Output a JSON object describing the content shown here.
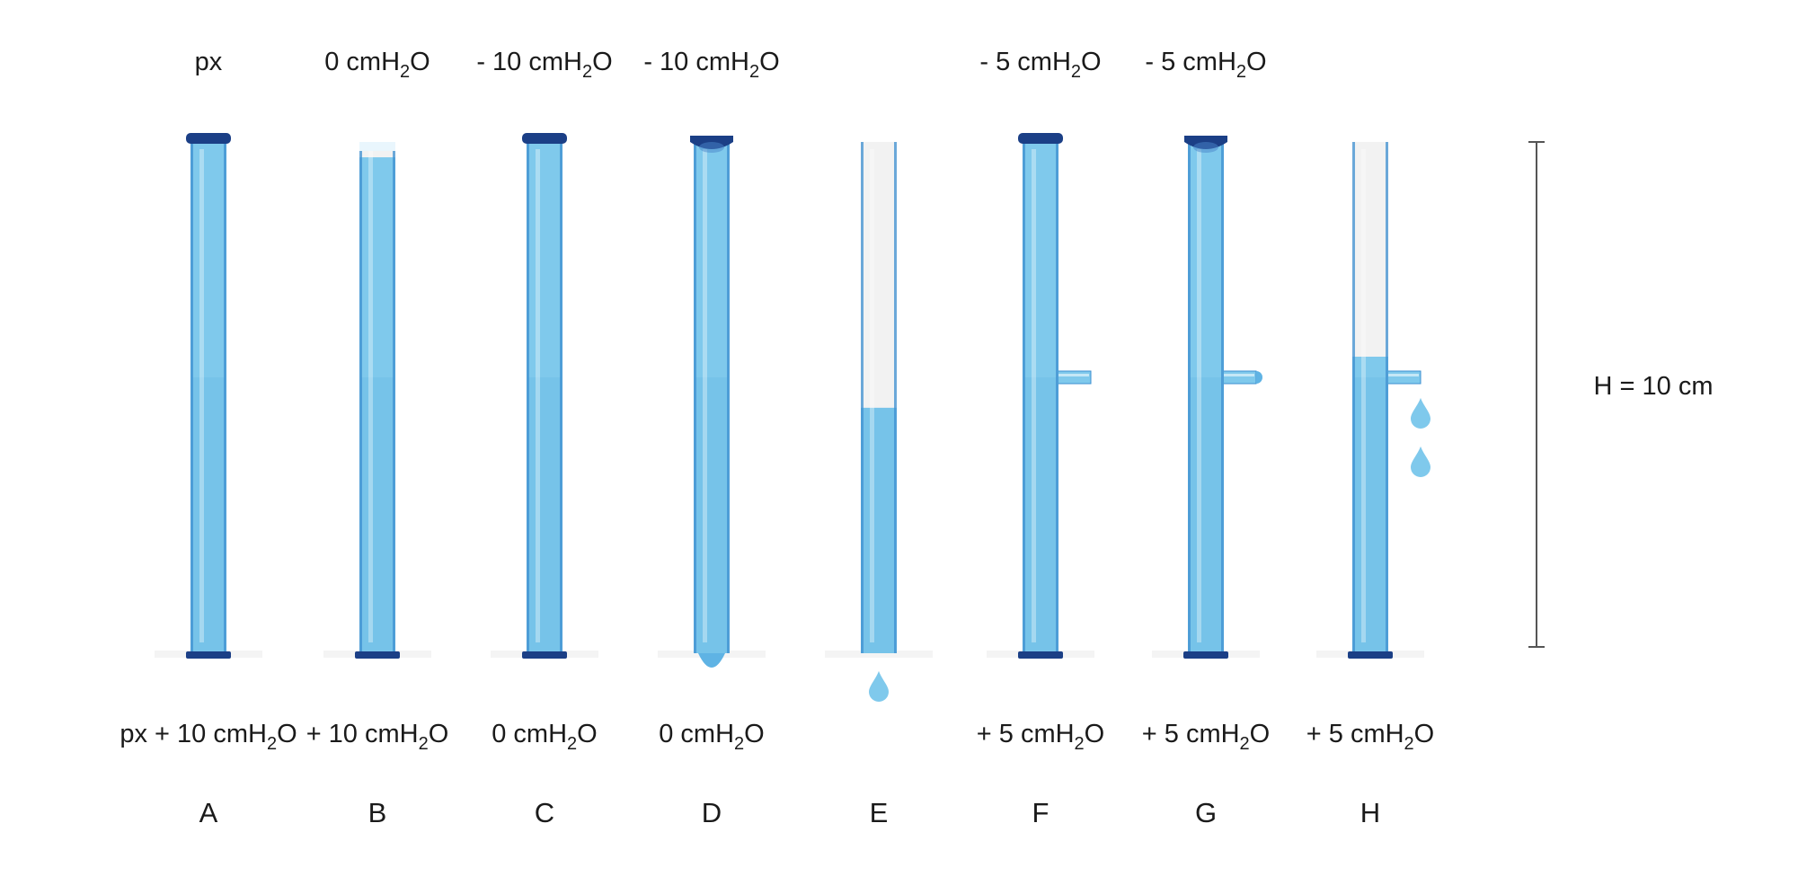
{
  "colors": {
    "water": "#7fc9ec",
    "water_dark": "#3d8fd0",
    "tube_empty": "#f2f2f2",
    "cap": "#1b3f86",
    "scale_line": "#555555"
  },
  "tubes": [
    {
      "letter": "A",
      "top": {
        "pre": "px",
        "sub": "",
        "post": ""
      },
      "bottom": {
        "pre": "px + 10 cmH",
        "sub": "2",
        "post": "O"
      },
      "cap": "sealed",
      "fill": 1.0,
      "drops": 0,
      "side_tube": "none"
    },
    {
      "letter": "B",
      "top": {
        "pre": "0 cmH",
        "sub": "2",
        "post": "O"
      },
      "bottom": {
        "pre": "+ 10 cmH",
        "sub": "2",
        "post": "O"
      },
      "cap": "open",
      "fill": 0.97,
      "drops": 0,
      "side_tube": "none"
    },
    {
      "letter": "C",
      "top": {
        "pre": "- 10 cmH",
        "sub": "2",
        "post": "O"
      },
      "bottom": {
        "pre": "0 cmH",
        "sub": "2",
        "post": "O"
      },
      "cap": "sealed",
      "fill": 1.0,
      "drops": 0,
      "side_tube": "none"
    },
    {
      "letter": "D",
      "top": {
        "pre": "- 10 cmH",
        "sub": "2",
        "post": "O"
      },
      "bottom": {
        "pre": "0 cmH",
        "sub": "2",
        "post": "O"
      },
      "cap": "concave",
      "fill": 1.0,
      "drops": 0,
      "bulge": true,
      "side_tube": "none"
    },
    {
      "letter": "E",
      "top": {
        "pre": "",
        "sub": "",
        "post": ""
      },
      "bottom": {
        "pre": "",
        "sub": "",
        "post": ""
      },
      "cap": "none",
      "fill": 0.48,
      "drops": 1,
      "side_tube": "none"
    },
    {
      "letter": "F",
      "top": {
        "pre": "- 5 cmH",
        "sub": "2",
        "post": "O"
      },
      "bottom": {
        "pre": "+ 5 cmH",
        "sub": "2",
        "post": "O"
      },
      "cap": "sealed",
      "fill": 1.0,
      "drops": 0,
      "side_tube": "plain"
    },
    {
      "letter": "G",
      "top": {
        "pre": "- 5 cmH",
        "sub": "2",
        "post": "O"
      },
      "bottom": {
        "pre": "+ 5 cmH",
        "sub": "2",
        "post": "O"
      },
      "cap": "concave",
      "fill": 1.0,
      "drops": 0,
      "side_tube": "meniscus"
    },
    {
      "letter": "H",
      "top": {
        "pre": "",
        "sub": "",
        "post": ""
      },
      "bottom": {
        "pre": "+ 5 cmH",
        "sub": "2",
        "post": "O"
      },
      "cap": "none",
      "fill": 0.58,
      "drops": 2,
      "side_tube": "dripping"
    }
  ],
  "scale": {
    "label": "H = 10 cm"
  }
}
